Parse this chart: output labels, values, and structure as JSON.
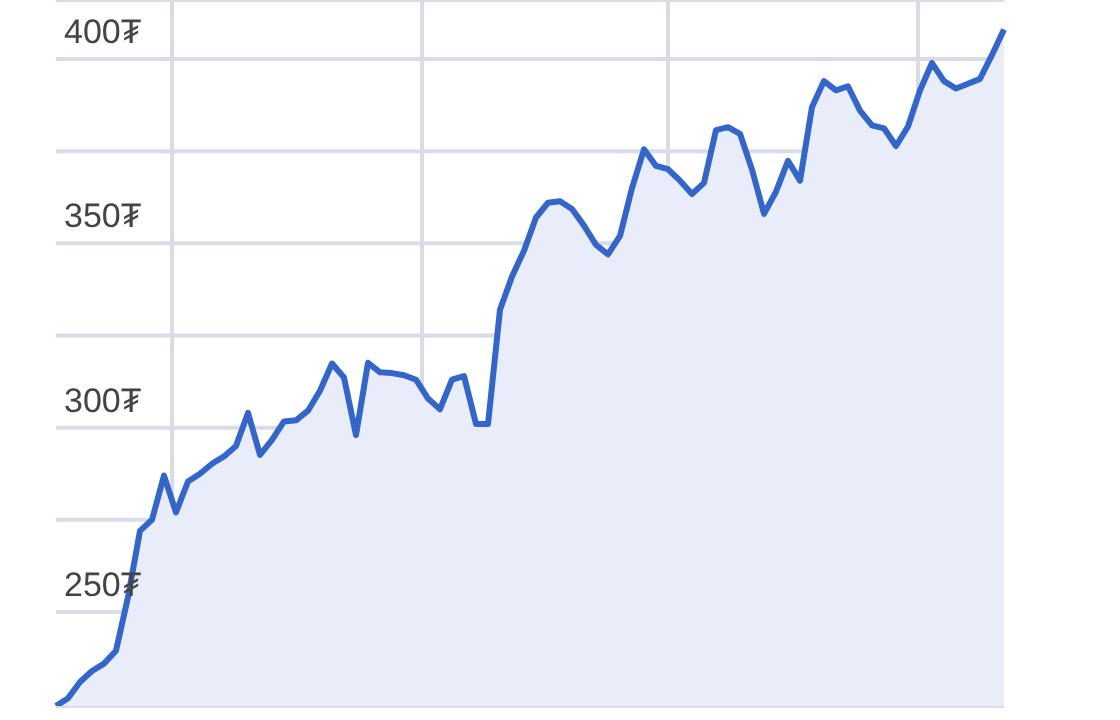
{
  "chart_data": {
    "type": "area",
    "categories": [
      null,
      null,
      null,
      null,
      null,
      null,
      null,
      null,
      null,
      null,
      null,
      null,
      null,
      null,
      null,
      null,
      null,
      null,
      null,
      null,
      null,
      null,
      null,
      null,
      null,
      null,
      null,
      null,
      null,
      null,
      null,
      null,
      null,
      null,
      null,
      null,
      null,
      null,
      null,
      null,
      null,
      null,
      null,
      null,
      null,
      null,
      null,
      null,
      null,
      null,
      null,
      null,
      null,
      null,
      null,
      null,
      null,
      null,
      null,
      null,
      null,
      null,
      null,
      null,
      null,
      null,
      null,
      null,
      null,
      null,
      null,
      null,
      null,
      null,
      null,
      null,
      null,
      null,
      null,
      null
    ],
    "series": [
      {
        "color": "#3366cc",
        "values": [
          224.5,
          226.6,
          231,
          234,
          236,
          239.5,
          254,
          272,
          275,
          287,
          277,
          285.4,
          287.5,
          290.2,
          292.2,
          295,
          304,
          292.6,
          296.7,
          301.7,
          302,
          304.6,
          310,
          317.4,
          313.6,
          298,
          317.6,
          315,
          314.8,
          314.2,
          313,
          307.9,
          305,
          313,
          314,
          301,
          301,
          332,
          341,
          348,
          357,
          361,
          361.4,
          359.3,
          354.8,
          349.6,
          347,
          352,
          365,
          375.5,
          371,
          370.1,
          367,
          363.4,
          366.4,
          380.7,
          381.5,
          379.7,
          370,
          358,
          364,
          372.4,
          367,
          387,
          394,
          391.5,
          392.6,
          386,
          382,
          381.2,
          376.4,
          381.7,
          391.5,
          398.9,
          394,
          392,
          393.3,
          394.6,
          401.1,
          408
        ]
      }
    ],
    "ylim": [
      224.5,
      416
    ],
    "yticks": [
      {
        "value": 250,
        "label": "250₮"
      },
      {
        "value": 275,
        "label": null
      },
      {
        "value": 300,
        "label": "300₮"
      },
      {
        "value": 325,
        "label": null
      },
      {
        "value": 350,
        "label": "350₮"
      },
      {
        "value": 375,
        "label": null
      },
      {
        "value": 400,
        "label": "400₮"
      }
    ],
    "grid": true,
    "marker": "none",
    "line_style": "solid"
  }
}
